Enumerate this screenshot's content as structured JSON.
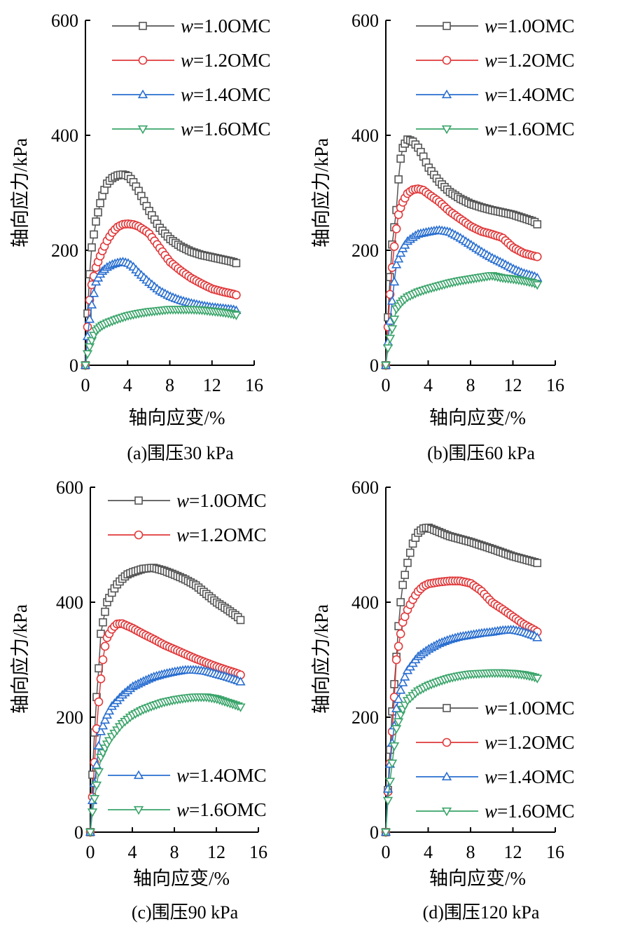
{
  "chart_data": [
    {
      "type": "line",
      "panel": "a",
      "caption": "(a)围压30 kPa",
      "xlabel": "轴向应变/%",
      "ylabel": "轴向应力/kPa",
      "xlim": [
        0,
        16
      ],
      "ylim": [
        0,
        600
      ],
      "xticks": [
        "0",
        "4",
        "8",
        "12",
        "16"
      ],
      "yticks": [
        "0",
        "200",
        "400",
        "600"
      ],
      "legend_position": "top-right",
      "legend": [
        "1.0",
        "1.2",
        "1.4",
        "1.6"
      ],
      "series": [
        {
          "name": "w=1.0OMC",
          "x": [
            0,
            0.3,
            0.6,
            1.0,
            1.5,
            2.0,
            2.5,
            3.0,
            3.5,
            4.0,
            4.5,
            5.0,
            6.0,
            7.0,
            8.0,
            9.0,
            10.0,
            11.0,
            12.0,
            13.0,
            14.0,
            14.5
          ],
          "y": [
            0,
            135,
            205,
            250,
            290,
            315,
            325,
            330,
            332,
            330,
            320,
            305,
            270,
            240,
            220,
            207,
            198,
            192,
            188,
            184,
            180,
            176
          ]
        },
        {
          "name": "w=1.2OMC",
          "x": [
            0,
            0.3,
            0.6,
            1.0,
            1.5,
            2.0,
            2.5,
            3.0,
            3.5,
            4.0,
            4.5,
            5.0,
            6.0,
            7.0,
            8.0,
            9.0,
            10.0,
            11.0,
            12.0,
            13.0,
            14.0,
            14.5
          ],
          "y": [
            0,
            100,
            140,
            170,
            195,
            215,
            230,
            240,
            245,
            246,
            245,
            242,
            230,
            205,
            180,
            165,
            152,
            142,
            133,
            128,
            124,
            121
          ]
        },
        {
          "name": "w=1.4OMC",
          "x": [
            0,
            0.2,
            0.5,
            0.8,
            1.0,
            1.5,
            2.0,
            2.5,
            3.0,
            3.5,
            4.0,
            4.5,
            5.0,
            6.0,
            7.0,
            8.0,
            9.0,
            10.0,
            11.0,
            12.0,
            13.0,
            14.0,
            14.5
          ],
          "y": [
            0,
            50,
            95,
            125,
            145,
            162,
            170,
            175,
            178,
            180,
            178,
            172,
            162,
            145,
            130,
            120,
            113,
            108,
            104,
            101,
            99,
            97,
            94
          ]
        },
        {
          "name": "w=1.6OMC",
          "x": [
            0,
            0.2,
            0.5,
            0.8,
            1.0,
            1.5,
            2.0,
            3.0,
            4.0,
            5.0,
            6.0,
            7.0,
            8.0,
            9.0,
            10.0,
            11.0,
            12.0,
            13.0,
            14.0,
            14.5
          ],
          "y": [
            0,
            20,
            38,
            52,
            60,
            68,
            73,
            80,
            86,
            90,
            93,
            95,
            97,
            97,
            97,
            96,
            94,
            92,
            89,
            86
          ]
        }
      ]
    },
    {
      "type": "line",
      "panel": "b",
      "caption": "(b)围压60 kPa",
      "xlabel": "轴向应变/%",
      "ylabel": "轴向应力/kPa",
      "xlim": [
        0,
        16
      ],
      "ylim": [
        0,
        600
      ],
      "xticks": [
        "0",
        "4",
        "8",
        "12",
        "16"
      ],
      "yticks": [
        "0",
        "200",
        "400",
        "600"
      ],
      "legend_position": "top-right",
      "legend": [
        "1.0",
        "1.2",
        "1.4",
        "1.6"
      ],
      "series": [
        {
          "name": "w=1.0OMC",
          "x": [
            0,
            0.3,
            0.6,
            1.0,
            1.3,
            1.6,
            2.0,
            2.5,
            3.0,
            3.5,
            4.0,
            5.0,
            6.0,
            7.0,
            8.0,
            9.0,
            10.0,
            11.0,
            12.0,
            13.0,
            14.0,
            14.5
          ],
          "y": [
            0,
            125,
            210,
            270,
            350,
            378,
            393,
            390,
            380,
            365,
            345,
            320,
            302,
            290,
            281,
            275,
            270,
            266,
            262,
            256,
            250,
            242
          ]
        },
        {
          "name": "w=1.2OMC",
          "x": [
            0,
            0.3,
            0.6,
            0.9,
            1.2,
            1.5,
            2.0,
            2.5,
            3.0,
            3.5,
            4.0,
            5.0,
            6.0,
            7.0,
            8.0,
            9.0,
            10.0,
            11.0,
            12.0,
            13.0,
            14.0,
            14.5
          ],
          "y": [
            0,
            100,
            170,
            225,
            262,
            280,
            298,
            305,
            307,
            305,
            298,
            285,
            268,
            255,
            242,
            233,
            228,
            222,
            205,
            195,
            190,
            188
          ]
        },
        {
          "name": "w=1.4OMC",
          "x": [
            0,
            0.2,
            0.5,
            0.8,
            1.0,
            1.5,
            2.0,
            2.5,
            3.0,
            4.0,
            5.0,
            6.0,
            7.0,
            8.0,
            9.0,
            10.0,
            11.0,
            12.0,
            13.0,
            14.0,
            14.5
          ],
          "y": [
            0,
            40,
            95,
            145,
            175,
            200,
            215,
            222,
            228,
            232,
            235,
            232,
            222,
            210,
            198,
            187,
            178,
            168,
            160,
            155,
            150
          ]
        },
        {
          "name": "w=1.6OMC",
          "x": [
            0,
            0.2,
            0.5,
            0.8,
            1.0,
            1.5,
            2.0,
            3.0,
            4.0,
            5.0,
            6.0,
            7.0,
            8.0,
            9.0,
            10.0,
            11.0,
            12.0,
            13.0,
            14.0,
            14.5
          ],
          "y": [
            0,
            30,
            55,
            80,
            98,
            110,
            118,
            127,
            133,
            138,
            143,
            147,
            150,
            153,
            156,
            152,
            150,
            147,
            143,
            138
          ]
        }
      ]
    },
    {
      "type": "line",
      "panel": "c",
      "caption": "(c)围压90 kPa",
      "xlabel": "轴向应变/%",
      "ylabel": "轴向应力/kPa",
      "xlim": [
        0,
        16
      ],
      "ylim": [
        0,
        600
      ],
      "xticks": [
        "0",
        "4",
        "8",
        "12",
        "16"
      ],
      "yticks": [
        "0",
        "200",
        "400",
        "600"
      ],
      "legend_position": "top-right (1.0, 1.2) and bottom-right (1.4, 1.6)",
      "legend": [
        "1.0",
        "1.2",
        "1.4",
        "1.6"
      ],
      "series": [
        {
          "name": "w=1.0OMC",
          "x": [
            0,
            0.2,
            0.5,
            0.8,
            1.0,
            1.3,
            1.6,
            2.0,
            2.5,
            3.0,
            3.5,
            4.0,
            5.0,
            6.0,
            7.0,
            8.0,
            9.0,
            10.0,
            11.0,
            12.0,
            13.0,
            14.0,
            14.5
          ],
          "y": [
            0,
            100,
            210,
            285,
            345,
            375,
            400,
            415,
            430,
            440,
            448,
            452,
            458,
            460,
            455,
            448,
            440,
            430,
            415,
            400,
            388,
            375,
            365
          ]
        },
        {
          "name": "w=1.2OMC",
          "x": [
            0,
            0.3,
            0.6,
            0.9,
            1.2,
            1.5,
            2.0,
            2.5,
            3.0,
            4.0,
            5.0,
            6.0,
            7.0,
            8.0,
            9.0,
            10.0,
            11.0,
            12.0,
            13.0,
            14.0,
            14.5
          ],
          "y": [
            0,
            92,
            180,
            250,
            300,
            335,
            352,
            362,
            363,
            355,
            345,
            336,
            326,
            318,
            310,
            302,
            295,
            288,
            282,
            276,
            272
          ]
        },
        {
          "name": "w=1.4OMC",
          "x": [
            0,
            0.2,
            0.5,
            0.8,
            1.0,
            1.5,
            2.0,
            3.0,
            4.0,
            5.0,
            6.0,
            7.0,
            8.0,
            9.0,
            10.0,
            11.0,
            12.0,
            13.0,
            14.0,
            14.5
          ],
          "y": [
            0,
            55,
            100,
            150,
            175,
            200,
            218,
            238,
            253,
            262,
            270,
            275,
            279,
            282,
            282,
            280,
            275,
            270,
            264,
            260
          ]
        },
        {
          "name": "w=1.6OMC",
          "x": [
            0,
            0.2,
            0.5,
            0.8,
            1.0,
            1.5,
            2.0,
            3.0,
            4.0,
            5.0,
            6.0,
            7.0,
            8.0,
            9.0,
            10.0,
            11.0,
            12.0,
            13.0,
            14.0,
            14.5
          ],
          "y": [
            0,
            35,
            70,
            105,
            130,
            150,
            165,
            188,
            203,
            213,
            220,
            226,
            230,
            233,
            235,
            235,
            232,
            226,
            220,
            216
          ]
        }
      ]
    },
    {
      "type": "line",
      "panel": "d",
      "caption": "(d)围压120 kPa",
      "xlabel": "轴向应变/%",
      "ylabel": "轴向应力/kPa",
      "xlim": [
        0,
        16
      ],
      "ylim": [
        0,
        600
      ],
      "xticks": [
        "0",
        "4",
        "8",
        "12",
        "16"
      ],
      "yticks": [
        "0",
        "200",
        "400",
        "600"
      ],
      "legend_position": "bottom-right",
      "legend": [
        "1.0",
        "1.2",
        "1.4",
        "1.6"
      ],
      "series": [
        {
          "name": "w=1.0OMC",
          "x": [
            0,
            0.3,
            0.6,
            1.0,
            1.3,
            1.6,
            2.0,
            2.5,
            3.0,
            3.5,
            4.0,
            6.0,
            8.0,
            10.0,
            12.0,
            14.0,
            14.5
          ],
          "y": [
            0,
            110,
            210,
            305,
            385,
            430,
            465,
            500,
            520,
            528,
            530,
            515,
            505,
            493,
            480,
            470,
            467
          ]
        },
        {
          "name": "w=1.2OMC",
          "x": [
            0,
            0.2,
            0.5,
            0.8,
            1.0,
            1.3,
            1.6,
            2.0,
            2.5,
            3.0,
            3.5,
            4.0,
            5.0,
            6.0,
            7.0,
            8.0,
            9.0,
            10.0,
            11.0,
            12.0,
            13.0,
            14.0,
            14.5
          ],
          "y": [
            0,
            70,
            145,
            235,
            300,
            335,
            365,
            385,
            403,
            418,
            427,
            432,
            435,
            437,
            437,
            433,
            420,
            400,
            388,
            375,
            362,
            352,
            346
          ]
        },
        {
          "name": "w=1.4OMC",
          "x": [
            0,
            0.2,
            0.5,
            0.8,
            1.0,
            1.5,
            2.0,
            3.0,
            4.0,
            5.0,
            6.0,
            7.0,
            8.0,
            9.0,
            10.0,
            11.0,
            12.0,
            13.0,
            14.0,
            14.5
          ],
          "y": [
            0,
            75,
            140,
            185,
            215,
            255,
            280,
            305,
            318,
            328,
            335,
            340,
            343,
            346,
            348,
            351,
            352,
            348,
            342,
            336
          ]
        },
        {
          "name": "w=1.6OMC",
          "x": [
            0,
            0.2,
            0.5,
            0.8,
            1.0,
            1.5,
            2.0,
            3.0,
            4.0,
            5.0,
            6.0,
            7.0,
            8.0,
            9.0,
            10.0,
            11.0,
            12.0,
            13.0,
            14.0,
            14.5
          ],
          "y": [
            0,
            55,
            105,
            150,
            180,
            210,
            228,
            245,
            255,
            262,
            268,
            272,
            275,
            276,
            277,
            277,
            276,
            274,
            270,
            266
          ]
        }
      ]
    }
  ],
  "styles": {
    "colors": {
      "1.0": "#555555",
      "1.2": "#e0393b",
      "1.4": "#2a6fd0",
      "1.6": "#3aa46a"
    },
    "markers": {
      "1.0": "square",
      "1.2": "circle",
      "1.4": "triangle-up",
      "1.6": "triangle-down"
    }
  },
  "legend_labels": {
    "prefix": "w",
    "1.0": "=1.0OMC",
    "1.2": "=1.2OMC",
    "1.4": "=1.4OMC",
    "1.6": "=1.6OMC"
  }
}
